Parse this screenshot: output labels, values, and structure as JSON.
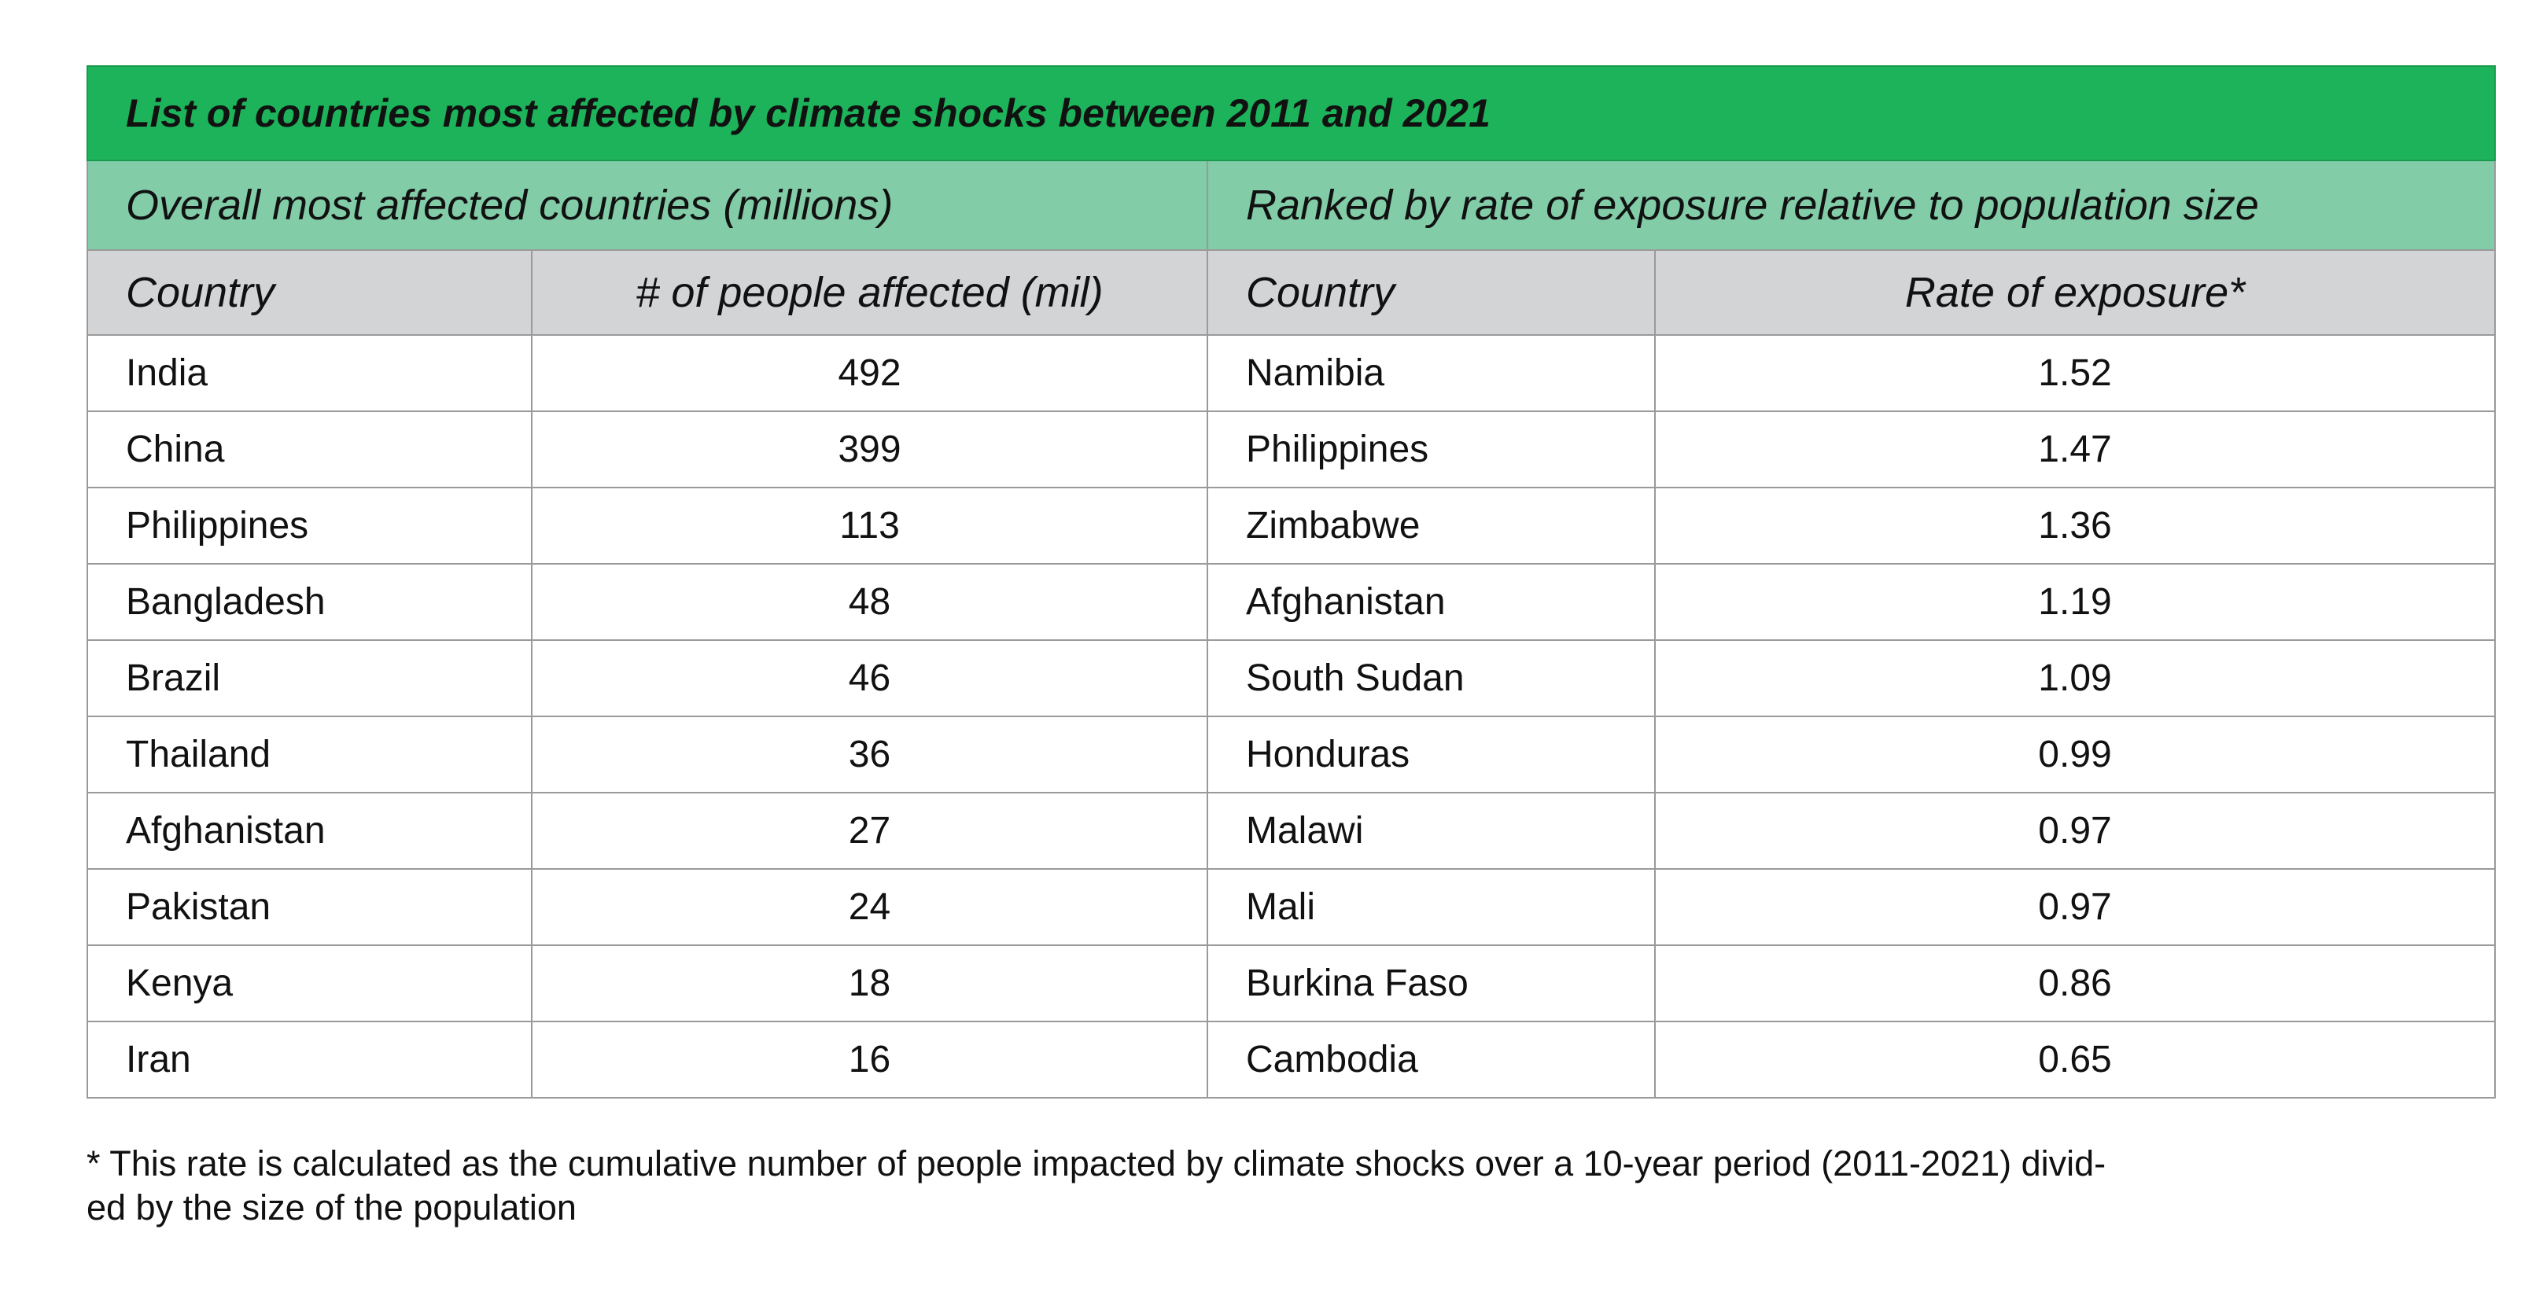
{
  "header": {
    "title": "List of countries most affected by climate shocks between 2011 and 2021"
  },
  "sections": [
    "Overall most affected countries (millions)",
    "Ranked by rate of exposure relative to population size"
  ],
  "table": {
    "columns": [
      "Country",
      "# of people affected (mil)",
      "Country",
      "Rate of exposure*"
    ],
    "rows": [
      [
        "India",
        492,
        "Namibia",
        1.52
      ],
      [
        "China",
        399,
        "Philippines",
        1.47
      ],
      [
        "Philippines",
        113,
        "Zimbabwe",
        1.36
      ],
      [
        "Bangladesh",
        48,
        "Afghanistan",
        1.19
      ],
      [
        "Brazil",
        46,
        "South Sudan",
        1.09
      ],
      [
        "Thailand",
        36,
        "Honduras",
        0.99
      ],
      [
        "Afghanistan",
        27,
        "Malawi",
        0.97
      ],
      [
        "Pakistan",
        24,
        "Mali",
        0.97
      ],
      [
        "Kenya",
        18,
        "Burkina Faso",
        0.86
      ],
      [
        "Iran",
        16,
        "Cambodia",
        0.65
      ]
    ]
  },
  "footnote": [
    "* This rate is calculated as the cumulative number of people impacted by climate shocks over a 10-year period (2011-2021) divid-",
    "ed by the size of the population"
  ]
}
